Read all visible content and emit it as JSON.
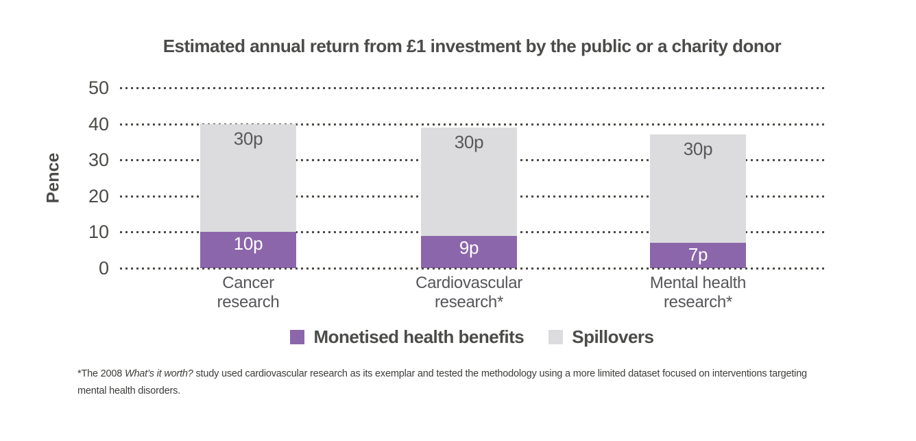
{
  "chart_data": {
    "type": "bar",
    "stacked": true,
    "title": "Estimated annual return from £1 investment by the public or a charity donor",
    "ylabel": "Pence",
    "ylim": [
      0,
      50
    ],
    "yticks": [
      0,
      10,
      20,
      30,
      40,
      50
    ],
    "grid": "dotted-horizontal",
    "legend_position": "bottom",
    "categories": [
      "Cancer\nresearch",
      "Cardiovascular\nresearch*",
      "Mental health\nresearch*"
    ],
    "series": [
      {
        "name": "Monetised health benefits",
        "color": "#8c66aa",
        "label_color": "#ffffff",
        "values": [
          10,
          9,
          7
        ],
        "value_labels": [
          "10p",
          "9p",
          "7p"
        ]
      },
      {
        "name": "Spillovers",
        "color": "#dcdcde",
        "label_color": "#58585a",
        "values": [
          30,
          30,
          30
        ],
        "value_labels": [
          "30p",
          "30p",
          "30p"
        ]
      }
    ],
    "totals": [
      40,
      39,
      37
    ],
    "colors": {
      "grid": "#4a4a44",
      "title_text": "#4b4b49",
      "axis_text": "#4a4a46",
      "category_text": "#56565a"
    }
  },
  "footnote": {
    "prefix": "*The 2008 ",
    "italic": "What’s it worth?",
    "suffix": " study used cardiovascular research as its exemplar and tested the methodology using a more limited dataset focused on interventions targeting mental health disorders."
  }
}
